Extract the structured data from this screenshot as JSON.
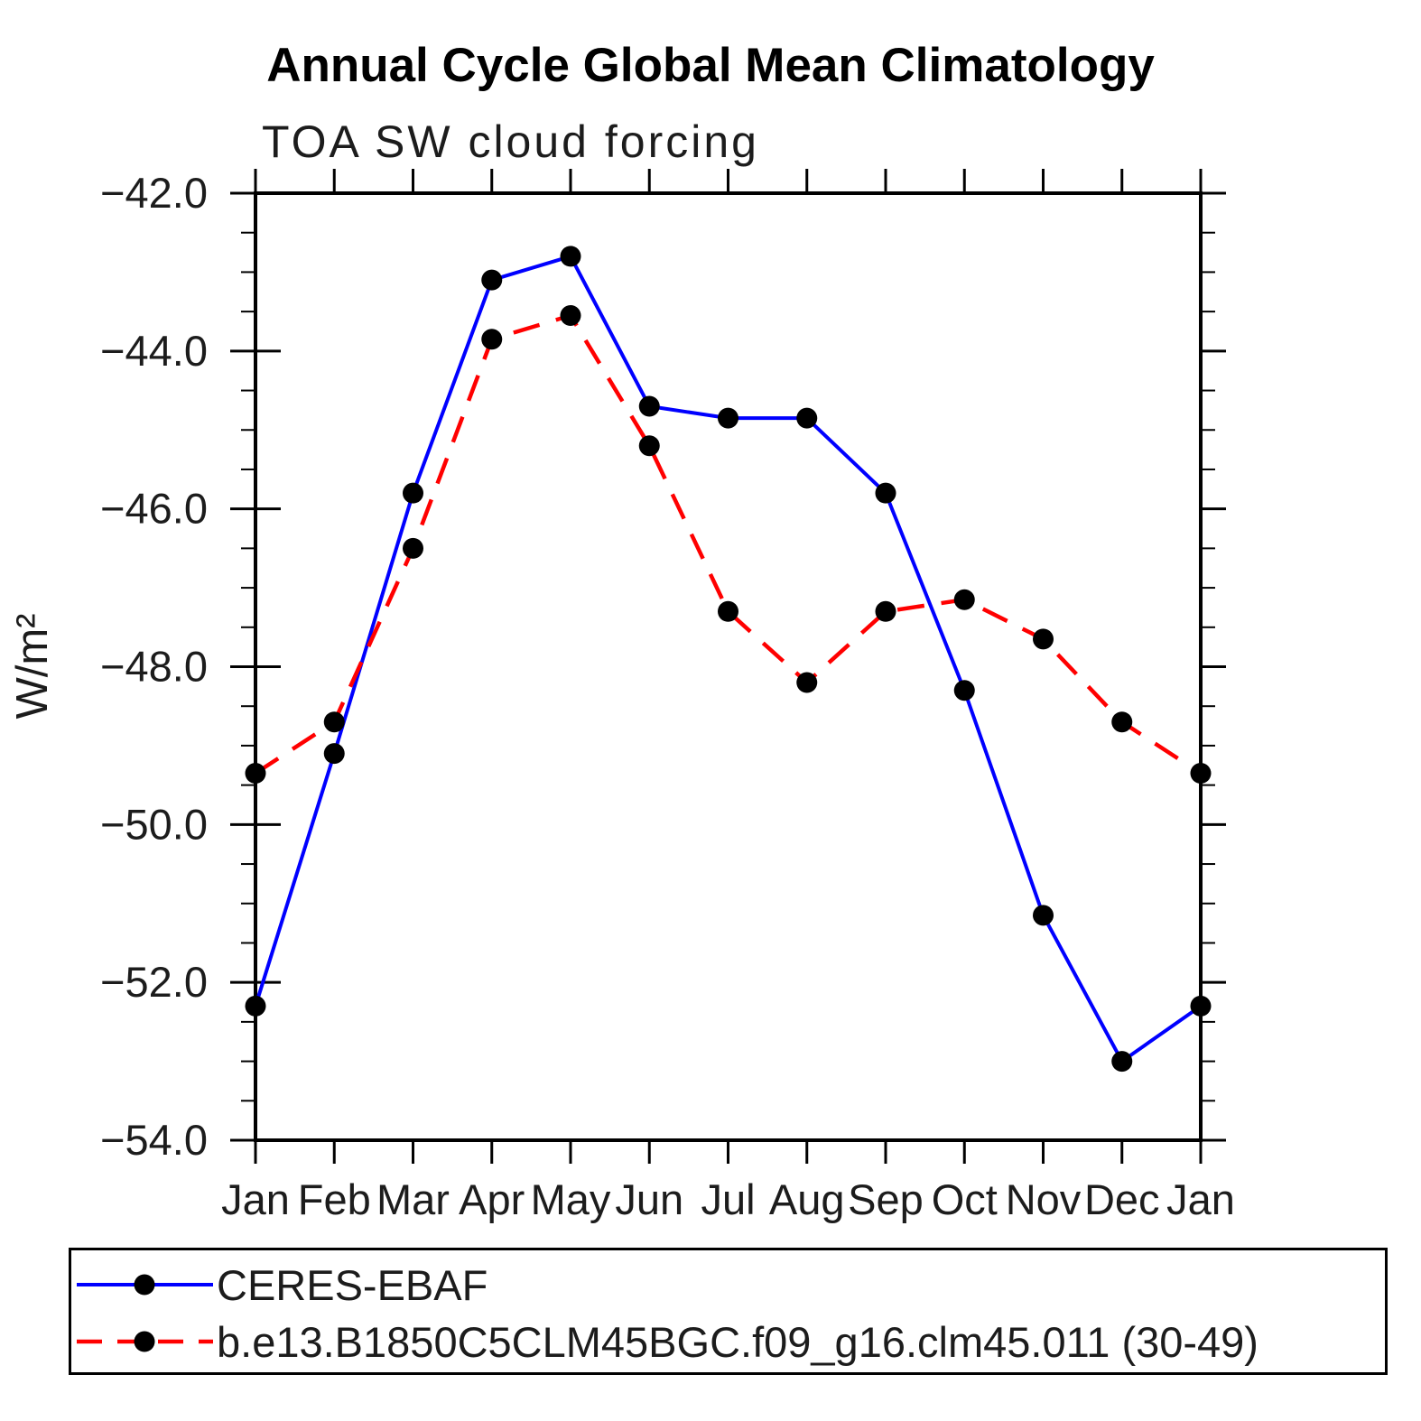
{
  "page": {
    "background": "#ffffff",
    "text_color": "#000000"
  },
  "header": {
    "title": "Annual Cycle Global Mean Climatology",
    "subtitle": "TOA SW cloud forcing"
  },
  "chart_data": {
    "type": "line",
    "title": "Annual Cycle Global Mean Climatology",
    "subtitle": "TOA SW cloud forcing",
    "xlabel": "",
    "ylabel": "W/m²",
    "x_categories": [
      "Jan",
      "Feb",
      "Mar",
      "Apr",
      "May",
      "Jun",
      "Jul",
      "Aug",
      "Sep",
      "Oct",
      "Nov",
      "Dec",
      "Jan"
    ],
    "ylim": [
      -54.0,
      -42.0
    ],
    "y_major_ticks": [
      -42.0,
      -44.0,
      -46.0,
      -48.0,
      -50.0,
      -52.0,
      -54.0
    ],
    "y_tick_labels": [
      "−42.0",
      "−44.0",
      "−46.0",
      "−48.0",
      "−50.0",
      "−52.0",
      "−54.0"
    ],
    "y_minor_step": 0.5,
    "grid": "off",
    "legend_position": "bottom-left-box",
    "marker_color": "#000000",
    "series": [
      {
        "name": "CERES-EBAF",
        "color": "#0000ff",
        "line_style": "solid",
        "marker": "circle",
        "values": [
          -52.3,
          -49.1,
          -45.8,
          -43.1,
          -42.8,
          -44.7,
          -44.85,
          -44.85,
          -45.8,
          -48.3,
          -51.15,
          -53.0,
          -52.3
        ]
      },
      {
        "name": "b.e13.B1850C5CLM45BGC.f09_g16.clm45.011 (30-49)",
        "color": "#ff0000",
        "line_style": "dashed",
        "marker": "circle",
        "values": [
          -49.35,
          -48.7,
          -46.5,
          -43.85,
          -43.55,
          -45.2,
          -47.3,
          -48.2,
          -47.3,
          -47.15,
          -47.65,
          -48.7,
          -49.35
        ]
      }
    ]
  }
}
